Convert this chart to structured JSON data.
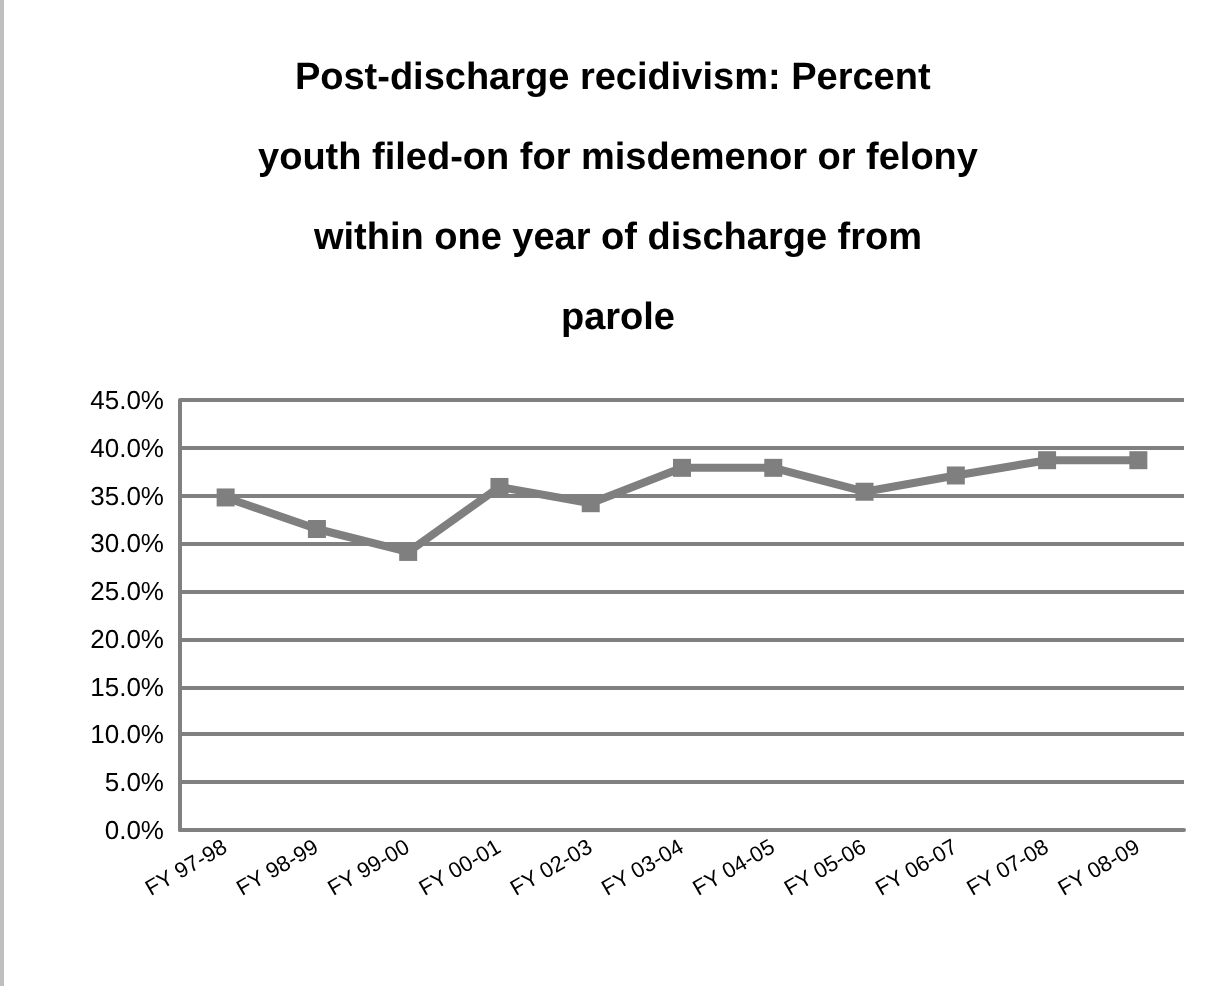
{
  "chart_data": {
    "type": "line",
    "title": "Post-discharge recidivism: Percent youth filed-on for misdemenor or felony within one year of discharge from parole",
    "categories": [
      "FY 97-98",
      "FY 98-99",
      "FY 99-00",
      "FY 00-01",
      "FY 02-03",
      "FY 03-04",
      "FY 04-05",
      "FY 05-06",
      "FY 06-07",
      "FY 07-08",
      "FY 08-09"
    ],
    "series": [
      {
        "color": "#7f7f7f",
        "values": [
          34.8,
          31.5,
          29.1,
          35.9,
          34.2,
          37.9,
          37.9,
          35.4,
          37.1,
          38.7,
          38.7
        ]
      }
    ],
    "ylim": [
      0,
      45
    ],
    "yticks": [
      {
        "value": 0,
        "label": "0.0%"
      },
      {
        "value": 5,
        "label": "5.0%"
      },
      {
        "value": 10,
        "label": "10.0%"
      },
      {
        "value": 15,
        "label": "15.0%"
      },
      {
        "value": 20,
        "label": "20.0%"
      },
      {
        "value": 25,
        "label": "25.0%"
      },
      {
        "value": 30,
        "label": "30.0%"
      },
      {
        "value": 35,
        "label": "35.0%"
      },
      {
        "value": 40,
        "label": "40.0%"
      },
      {
        "value": 45,
        "label": "45.0%"
      }
    ],
    "grid": "y",
    "marker": "square",
    "line_style": "solid"
  }
}
